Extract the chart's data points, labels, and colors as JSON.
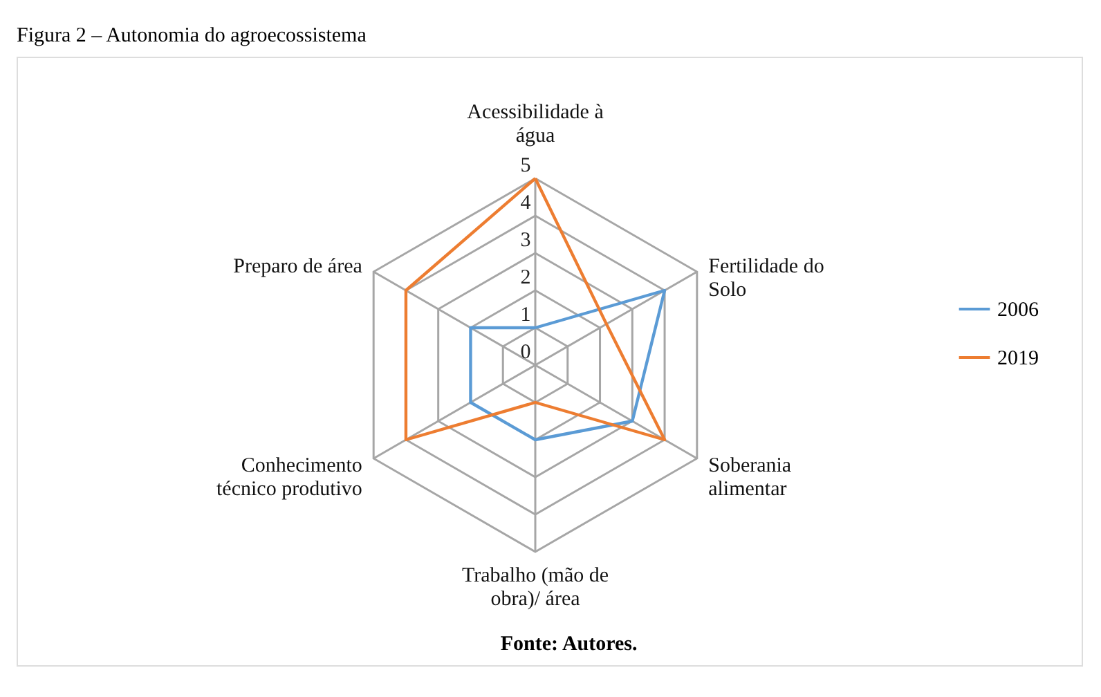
{
  "chart_data": {
    "type": "radar",
    "title": "Figura 2 – Autonomia do agroecossistema",
    "categories": [
      "Acessibilidade à água",
      "Fertilidade do Solo",
      "Soberania alimentar",
      "Trabalho (mão de obra)/ área",
      "Conhecimento técnico produtivo",
      "Preparo de área"
    ],
    "series": [
      {
        "name": "2006",
        "color": "#5b9bd5",
        "values": [
          1,
          4,
          3,
          2,
          2,
          2
        ]
      },
      {
        "name": "2019",
        "color": "#ed7d31",
        "values": [
          5,
          2.2,
          4,
          1,
          4,
          4
        ]
      }
    ],
    "ylim": [
      0,
      5
    ],
    "yticks": [
      0,
      1,
      2,
      3,
      4,
      5
    ],
    "grid": true,
    "legend": "right",
    "marker": "none",
    "annotations": [
      "Fonte: Autores."
    ]
  }
}
